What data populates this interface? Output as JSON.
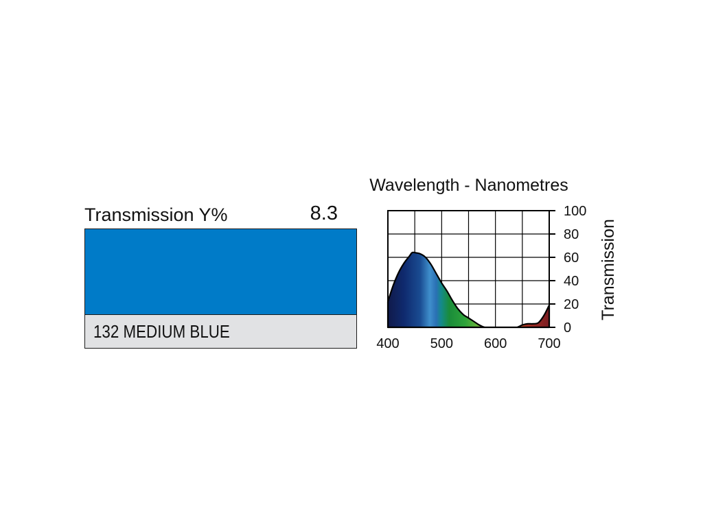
{
  "swatch": {
    "transmission_label": "Transmission Y%",
    "transmission_value": "8.3",
    "name": "132 MEDIUM BLUE",
    "color": "#007bc8"
  },
  "colors": {
    "name_box_background": "#e1e2e4",
    "border": "#1a1a1a"
  },
  "chart_data": {
    "type": "area",
    "title": "Wavelength - Nanometres",
    "xlabel": "",
    "ylabel": "Transmission",
    "xlim": [
      400,
      700
    ],
    "ylim": [
      0,
      100
    ],
    "x_ticks": [
      "400",
      "500",
      "600",
      "700"
    ],
    "y_ticks": [
      "0",
      "20",
      "40",
      "60",
      "80",
      "100"
    ],
    "grid": true,
    "series": [
      {
        "x": [
          400,
          410,
          420,
          430,
          440,
          445,
          450,
          460,
          470,
          480,
          490,
          500,
          510,
          520,
          530,
          540,
          550,
          560,
          570,
          580,
          590,
          600,
          610,
          620,
          630,
          640,
          650,
          660,
          670,
          680,
          690,
          700
        ],
        "y": [
          22,
          36,
          47,
          55,
          61,
          64,
          64,
          63,
          60,
          54,
          46,
          38,
          31,
          23,
          16,
          11,
          8,
          5,
          2,
          0,
          0,
          0,
          0,
          0,
          0,
          0,
          2,
          3,
          3,
          4,
          10,
          19
        ]
      }
    ]
  }
}
